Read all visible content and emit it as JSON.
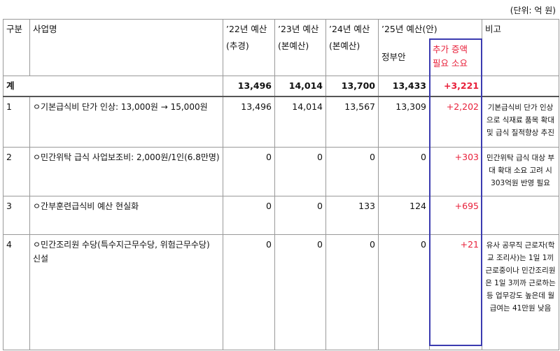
{
  "unit": "(단위: 억 원)",
  "header": {
    "category": "구분",
    "name": "사업명",
    "y22": [
      "’22년 예산",
      "(추경)"
    ],
    "y23": [
      "’23년 예산",
      "(본예산)"
    ],
    "y24": [
      "’24년 예산",
      "(본예산)"
    ],
    "y25": "’25년 예산(안)",
    "gov": "정부안",
    "extra": [
      "추가 증액",
      "필요 소요"
    ],
    "remark": "비고"
  },
  "total": {
    "label": "계",
    "values": [
      "13,496",
      "14,014",
      "13,700",
      "13,433",
      "+3,221"
    ]
  },
  "rows": [
    {
      "no": "1",
      "name": "ㅇ기본급식비 단가 인상: 13,000원 → 15,000원",
      "values": [
        "13,496",
        "14,014",
        "13,567",
        "13,309",
        "+2,202"
      ],
      "remark": "기본급식비 단가 인상으로 식재료 품목 확대 및 급식 질적향상 추진"
    },
    {
      "no": "2",
      "name": "ㅇ민간위탁 급식 사업보조비: 2,000원/1인(6.8만명)",
      "values": [
        "0",
        "0",
        "0",
        "0",
        "+303"
      ],
      "remark": "민간위탁 급식 대상 부대 확대 소요 고려 시 303억원 반영 필요"
    },
    {
      "no": "3",
      "name": "ㅇ간부훈련급식비 예산 현실화",
      "values": [
        "0",
        "0",
        "133",
        "124",
        "+695"
      ]
    },
    {
      "no": "4",
      "name": "ㅇ민간조리원 수당(특수지근무수당, 위험근무수당) 신설",
      "values": [
        "0",
        "0",
        "0",
        "0",
        "+21"
      ],
      "remark": "유사 공무직 근로자(학교 조리사)는 1일 1끼 근로중이나 민간조리원은 1일 3끼까 근로하는 등 업무강도 높은데 월 급여는 41만원 낮음"
    }
  ]
}
